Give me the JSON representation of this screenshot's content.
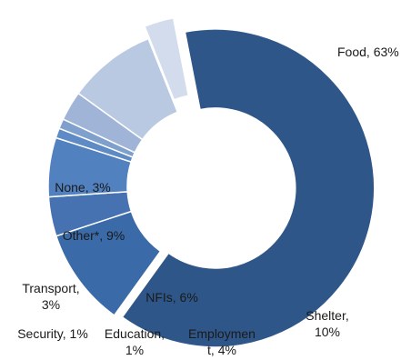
{
  "chart_data": {
    "type": "pie",
    "style": "donut",
    "title": "",
    "legend": "none",
    "slices": [
      {
        "label": "Food",
        "value": 63,
        "label_text": "Food, 63%",
        "color": "#2f5688"
      },
      {
        "label": "Shelter",
        "value": 10,
        "label_text": "Shelter, 10%",
        "color": "#3b6aa8"
      },
      {
        "label": "Employment",
        "value": 4,
        "label_text": "Employment, 4%",
        "color": "#4672b1"
      },
      {
        "label": "NFIs",
        "value": 6,
        "label_text": "NFIs, 6%",
        "color": "#5281c0"
      },
      {
        "label": "Education",
        "value": 1,
        "label_text": "Education, 1%",
        "color": "#5e8bc6"
      },
      {
        "label": "Security",
        "value": 1,
        "label_text": "Security, 1%",
        "color": "#7f9fcc"
      },
      {
        "label": "Transport",
        "value": 3,
        "label_text": "Transport, 3%",
        "color": "#9fb4d6"
      },
      {
        "label": "Other*",
        "value": 9,
        "label_text": "Other*, 9%",
        "color": "#b9c9e2"
      },
      {
        "label": "None",
        "value": 3,
        "label_text": "None, 3%",
        "color": "#d2dcec"
      }
    ]
  }
}
